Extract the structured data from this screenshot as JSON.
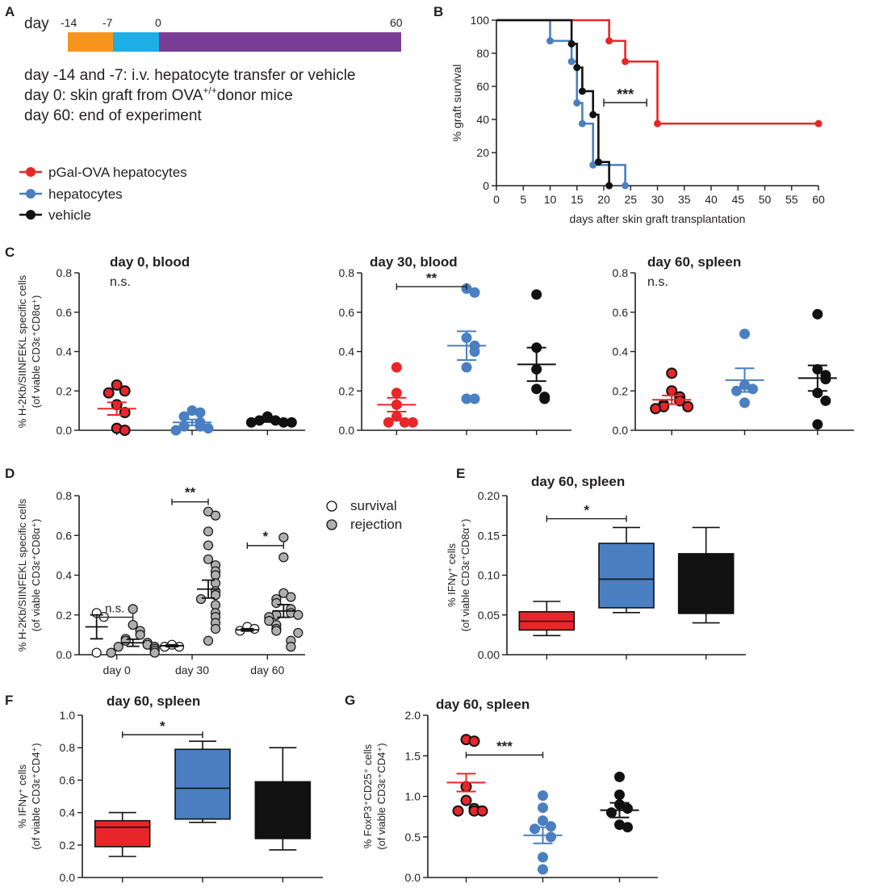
{
  "colors": {
    "red": "#e8262a",
    "blue": "#4a7fc1",
    "black": "#111111",
    "gray": "#aeaeae",
    "orange": "#f7941d",
    "cyan": "#1eaee6",
    "purple": "#7a3d95"
  },
  "panel_labels": [
    "A",
    "B",
    "C",
    "D",
    "E",
    "F",
    "G"
  ],
  "timeline": {
    "day_label": "day",
    "ticks": [
      "-14",
      "-7",
      "0",
      "60"
    ],
    "lines": [
      "day -14 and -7: i.v. hepatocyte transfer or vehicle",
      "day 0: skin graft from OVA",
      "donor mice",
      "day 60: end of experiment"
    ],
    "ova_superscript": "+/+"
  },
  "legend": {
    "items": [
      {
        "label": "pGal-OVA hepatocytes",
        "color": "red"
      },
      {
        "label": "hepatocytes",
        "color": "blue"
      },
      {
        "label": "vehicle",
        "color": "black"
      }
    ]
  },
  "groups": [
    "pGal-OVA hepatocytes",
    "hepatocytes",
    "vehicle"
  ],
  "chart_data": [
    {
      "id": "B",
      "type": "line",
      "subtype": "kaplan-meier",
      "xlabel": "days after skin graft transplantation",
      "ylabel": "%  graft survival",
      "xlim": [
        0,
        60
      ],
      "ylim": [
        0,
        100
      ],
      "xticks": [
        0,
        5,
        10,
        15,
        20,
        25,
        30,
        35,
        40,
        45,
        50,
        55,
        60
      ],
      "yticks": [
        0,
        20,
        40,
        60,
        80,
        100
      ],
      "series": [
        {
          "name": "pGal-OVA hepatocytes",
          "color": "red",
          "x": [
            0,
            21,
            21,
            24,
            24,
            30,
            30,
            60
          ],
          "y": [
            100,
            100,
            87.5,
            87.5,
            75,
            75,
            37.5,
            37.5
          ],
          "events": [
            [
              21,
              87.5
            ],
            [
              24,
              75
            ],
            [
              30,
              37.5
            ],
            [
              60,
              37.5
            ]
          ]
        },
        {
          "name": "hepatocytes",
          "color": "blue",
          "x": [
            0,
            10,
            10,
            14,
            14,
            15,
            15,
            16,
            16,
            18,
            18,
            24,
            24
          ],
          "y": [
            100,
            100,
            87.5,
            87.5,
            75,
            75,
            50,
            50,
            37.5,
            37.5,
            12.5,
            12.5,
            0
          ],
          "events": [
            [
              10,
              87.5
            ],
            [
              14,
              75
            ],
            [
              15,
              50
            ],
            [
              16,
              37.5
            ],
            [
              18,
              12.5
            ],
            [
              24,
              0
            ]
          ]
        },
        {
          "name": "vehicle",
          "color": "black",
          "x": [
            0,
            14,
            14,
            15,
            15,
            16,
            16,
            18,
            18,
            19,
            19,
            21,
            21
          ],
          "y": [
            100,
            100,
            85.7,
            85.7,
            71.4,
            71.4,
            57.1,
            57.1,
            42.9,
            42.9,
            14.3,
            14.3,
            0
          ],
          "events": [
            [
              14,
              85.7
            ],
            [
              15,
              71.4
            ],
            [
              16,
              57.1
            ],
            [
              18,
              42.9
            ],
            [
              19,
              14.3
            ],
            [
              21,
              0
            ]
          ]
        }
      ],
      "annotations": [
        {
          "text": "***",
          "x1": 20,
          "x2": 28,
          "y": 37.5
        }
      ]
    },
    {
      "id": "C1",
      "type": "scatter",
      "title": "day 0, blood",
      "significance": "n.s.",
      "ylabel_lines": [
        "% H-2Kb/SIINFEKL specific cells",
        "(of viable CD3ε⁺CD8α⁺)"
      ],
      "ylim": [
        0,
        0.8
      ],
      "yticks": [
        0.0,
        0.2,
        0.4,
        0.6,
        0.8
      ],
      "groups": [
        {
          "name": "pGal-OVA hepatocytes",
          "color": "red",
          "outlined": true,
          "values": [
            0.23,
            0.2,
            0.19,
            0.13,
            0.09,
            0.01,
            0.0
          ],
          "mean": 0.11,
          "sem": 0.032
        },
        {
          "name": "hepatocytes",
          "color": "blue",
          "outlined": false,
          "values": [
            0.1,
            0.09,
            0.07,
            0.04,
            0.02,
            0.02,
            0.01,
            0.0
          ],
          "mean": 0.04,
          "sem": 0.015
        },
        {
          "name": "vehicle",
          "color": "black",
          "outlined": false,
          "values": [
            0.07,
            0.05,
            0.05,
            0.04,
            0.04,
            0.04
          ],
          "mean": 0.048,
          "sem": 0.006
        }
      ]
    },
    {
      "id": "C2",
      "type": "scatter",
      "title": "day 30, blood",
      "ylim": [
        0,
        0.8
      ],
      "yticks": [
        0.0,
        0.2,
        0.4,
        0.6,
        0.8
      ],
      "groups": [
        {
          "name": "pGal-OVA hepatocytes",
          "color": "red",
          "outlined": false,
          "values": [
            0.32,
            0.19,
            0.13,
            0.07,
            0.04,
            0.04,
            0.04
          ],
          "mean": 0.13,
          "sem": 0.035
        },
        {
          "name": "hepatocytes",
          "color": "blue",
          "outlined": false,
          "values": [
            0.72,
            0.7,
            0.47,
            0.43,
            0.4,
            0.32,
            0.16,
            0.16
          ],
          "mean": 0.43,
          "sem": 0.073
        },
        {
          "name": "vehicle",
          "color": "black",
          "outlined": false,
          "values": [
            0.69,
            0.42,
            0.31,
            0.21,
            0.17,
            0.16
          ],
          "mean": 0.335,
          "sem": 0.085
        }
      ],
      "annotations": [
        {
          "text": "**",
          "from": 0,
          "to": 1,
          "y": 0.73
        }
      ]
    },
    {
      "id": "C3",
      "type": "scatter",
      "title": "day 60, spleen",
      "significance": "n.s.",
      "ylim": [
        0,
        0.8
      ],
      "yticks": [
        0.0,
        0.2,
        0.4,
        0.6,
        0.8
      ],
      "groups": [
        {
          "name": "pGal-OVA hepatocytes",
          "color": "red",
          "outlined": true,
          "values": [
            0.29,
            0.2,
            0.17,
            0.15,
            0.13,
            0.12,
            0.12,
            0.11
          ],
          "mean": 0.155,
          "sem": 0.022
        },
        {
          "name": "hepatocytes",
          "color": "blue",
          "outlined": false,
          "values": [
            0.49,
            0.23,
            0.21,
            0.2,
            0.14
          ],
          "mean": 0.255,
          "sem": 0.06
        },
        {
          "name": "vehicle",
          "color": "black",
          "outlined": false,
          "values": [
            0.59,
            0.31,
            0.28,
            0.26,
            0.19,
            0.15,
            0.03
          ],
          "mean": 0.265,
          "sem": 0.065
        }
      ]
    },
    {
      "id": "D",
      "type": "scatter",
      "ylabel_lines": [
        "% H-2Kb/SIINFEKL specific cells",
        "(of viable CD3ε⁺CD8α⁺)"
      ],
      "ylim": [
        0,
        0.8
      ],
      "yticks": [
        0.0,
        0.2,
        0.4,
        0.6,
        0.8
      ],
      "categories": [
        "day 0",
        "day 30",
        "day 60"
      ],
      "legend": [
        {
          "label": "survival",
          "color": "white"
        },
        {
          "label": "rejection",
          "color": "gray"
        }
      ],
      "groups": [
        {
          "cat": 0,
          "name": "survival",
          "color": "white",
          "values": [
            0.21,
            0.19,
            0.01
          ],
          "mean": 0.14,
          "sem": 0.06
        },
        {
          "cat": 0,
          "name": "rejection",
          "color": "gray",
          "values": [
            0.23,
            0.15,
            0.12,
            0.1,
            0.08,
            0.07,
            0.06,
            0.05,
            0.04,
            0.04,
            0.03,
            0.02,
            0.01,
            0.01
          ],
          "mean": 0.06,
          "sem": 0.018
        },
        {
          "cat": 1,
          "name": "survival",
          "color": "white",
          "values": [
            0.05,
            0.04,
            0.04
          ],
          "mean": 0.045,
          "sem": 0.005
        },
        {
          "cat": 1,
          "name": "rejection",
          "color": "gray",
          "values": [
            0.72,
            0.7,
            0.62,
            0.55,
            0.48,
            0.45,
            0.42,
            0.4,
            0.36,
            0.32,
            0.3,
            0.28,
            0.25,
            0.21,
            0.19,
            0.16,
            0.13,
            0.07
          ],
          "mean": 0.33,
          "sem": 0.045
        },
        {
          "cat": 2,
          "name": "survival",
          "color": "white",
          "values": [
            0.14,
            0.13,
            0.12
          ],
          "mean": 0.125,
          "sem": 0.006
        },
        {
          "cat": 2,
          "name": "rejection",
          "color": "gray",
          "values": [
            0.59,
            0.49,
            0.31,
            0.29,
            0.28,
            0.26,
            0.23,
            0.21,
            0.2,
            0.2,
            0.19,
            0.17,
            0.15,
            0.13,
            0.12,
            0.11,
            0.07,
            0.04
          ],
          "mean": 0.22,
          "sem": 0.032
        }
      ],
      "annotations": [
        {
          "text": "n.s.",
          "cat": 0,
          "y": 0.14
        },
        {
          "text": "**",
          "cat": 1,
          "y": 0.72
        },
        {
          "text": "*",
          "cat": 2,
          "y": 0.5
        }
      ]
    },
    {
      "id": "E",
      "type": "box",
      "title": "day 60, spleen",
      "ylabel_lines": [
        "% IFNγ⁺ cells",
        "(of viable CD3ε⁺CD8α⁺)"
      ],
      "ylim": [
        0,
        0.2
      ],
      "yticks": [
        "0.00",
        "0.05",
        "0.10",
        "0.15",
        "0.20"
      ],
      "boxes": [
        {
          "name": "pGal-OVA hepatocytes",
          "color": "red",
          "min": 0.024,
          "q1": 0.031,
          "median": 0.042,
          "q3": 0.054,
          "max": 0.067
        },
        {
          "name": "hepatocytes",
          "color": "blue",
          "min": 0.053,
          "q1": 0.059,
          "median": 0.095,
          "q3": 0.14,
          "max": 0.16
        },
        {
          "name": "vehicle",
          "color": "black",
          "min": 0.04,
          "q1": 0.052,
          "median": 0.052,
          "q3": 0.127,
          "max": 0.16
        }
      ],
      "annotations": [
        {
          "text": "*",
          "from": 0,
          "to": 1,
          "y": 0.171
        }
      ]
    },
    {
      "id": "F",
      "type": "box",
      "title": "day 60, spleen",
      "ylabel_lines": [
        "% IFNγ⁺ cells",
        "(of viable CD3ε⁺CD4⁺)"
      ],
      "ylim": [
        0,
        1.0
      ],
      "yticks": [
        "0.0",
        "0.2",
        "0.4",
        "0.6",
        "0.8",
        "1.0"
      ],
      "boxes": [
        {
          "name": "pGal-OVA hepatocytes",
          "color": "red",
          "min": 0.13,
          "q1": 0.19,
          "median": 0.31,
          "q3": 0.35,
          "max": 0.4
        },
        {
          "name": "hepatocytes",
          "color": "blue",
          "min": 0.34,
          "q1": 0.36,
          "median": 0.55,
          "q3": 0.79,
          "max": 0.84
        },
        {
          "name": "vehicle",
          "color": "black",
          "min": 0.17,
          "q1": 0.24,
          "median": 0.24,
          "q3": 0.59,
          "max": 0.8
        }
      ],
      "annotations": [
        {
          "text": "*",
          "from": 0,
          "to": 1,
          "y": 0.88
        }
      ]
    },
    {
      "id": "G",
      "type": "scatter",
      "title": "day 60, spleen",
      "ylabel_lines": [
        "% FoxP3⁺CD25⁺ cells",
        "(of viable CD3ε⁺CD4⁺)"
      ],
      "ylim": [
        0,
        2.0
      ],
      "yticks": [
        "0.0",
        "0.5",
        "1.0",
        "1.5",
        "2.0"
      ],
      "groups": [
        {
          "name": "pGal-OVA hepatocytes",
          "color": "red",
          "outlined": true,
          "values": [
            1.7,
            1.68,
            1.12,
            0.95,
            0.85,
            0.82,
            0.82,
            0.82
          ],
          "mean": 1.17,
          "sem": 0.11
        },
        {
          "name": "hepatocytes",
          "color": "blue",
          "outlined": false,
          "values": [
            1.01,
            0.86,
            0.7,
            0.63,
            0.6,
            0.5,
            0.25,
            0.1
          ],
          "mean": 0.52,
          "sem": 0.1
        },
        {
          "name": "vehicle",
          "color": "black",
          "outlined": false,
          "values": [
            1.24,
            1.02,
            0.9,
            0.85,
            0.8,
            0.65,
            0.62
          ],
          "mean": 0.83,
          "sem": 0.09
        }
      ],
      "annotations": [
        {
          "text": "***",
          "from": 0,
          "to": 1,
          "y": 1.51
        }
      ]
    }
  ]
}
